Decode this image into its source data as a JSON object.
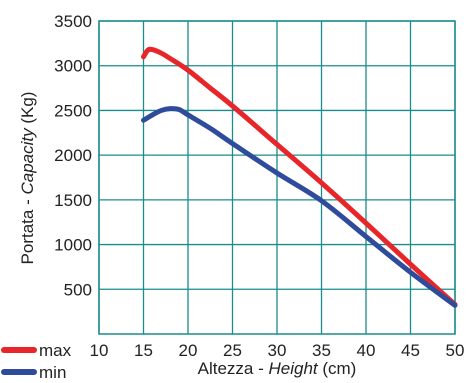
{
  "chart_data": {
    "type": "line",
    "title": "",
    "xlabel": {
      "prefix": "Altezza - ",
      "italic": "Height",
      "suffix": " (cm)"
    },
    "ylabel": {
      "prefix": "Portata - ",
      "italic": "Capacity",
      "suffix": " (Kg)"
    },
    "xlim": [
      10,
      50
    ],
    "ylim": [
      0,
      3500
    ],
    "xticks": [
      "10",
      "15",
      "20",
      "25",
      "30",
      "35",
      "40",
      "45",
      "50"
    ],
    "xtick_values": [
      10,
      15,
      20,
      25,
      30,
      35,
      40,
      45,
      50
    ],
    "yticks": [
      "500",
      "1000",
      "1500",
      "2000",
      "2500",
      "3000",
      "3500"
    ],
    "ytick_values": [
      500,
      1000,
      1500,
      2000,
      2500,
      3000,
      3500
    ],
    "grid": true,
    "grid_color": "#1a8c8c",
    "legend_position": "bottom-left",
    "series": [
      {
        "name": "max",
        "color": "#e8262a",
        "x": [
          15,
          15.5,
          16,
          17,
          18,
          20,
          22.5,
          25,
          30,
          35,
          40,
          45,
          50
        ],
        "y": [
          3100,
          3175,
          3180,
          3140,
          3080,
          2950,
          2750,
          2550,
          2120,
          1690,
          1240,
          780,
          330
        ]
      },
      {
        "name": "min",
        "color": "#2f4c9c",
        "x": [
          15,
          16,
          17,
          18,
          19,
          20,
          22.5,
          25,
          30,
          35,
          40,
          45,
          50
        ],
        "y": [
          2390,
          2450,
          2500,
          2520,
          2510,
          2450,
          2300,
          2130,
          1800,
          1490,
          1090,
          690,
          320
        ]
      }
    ]
  }
}
